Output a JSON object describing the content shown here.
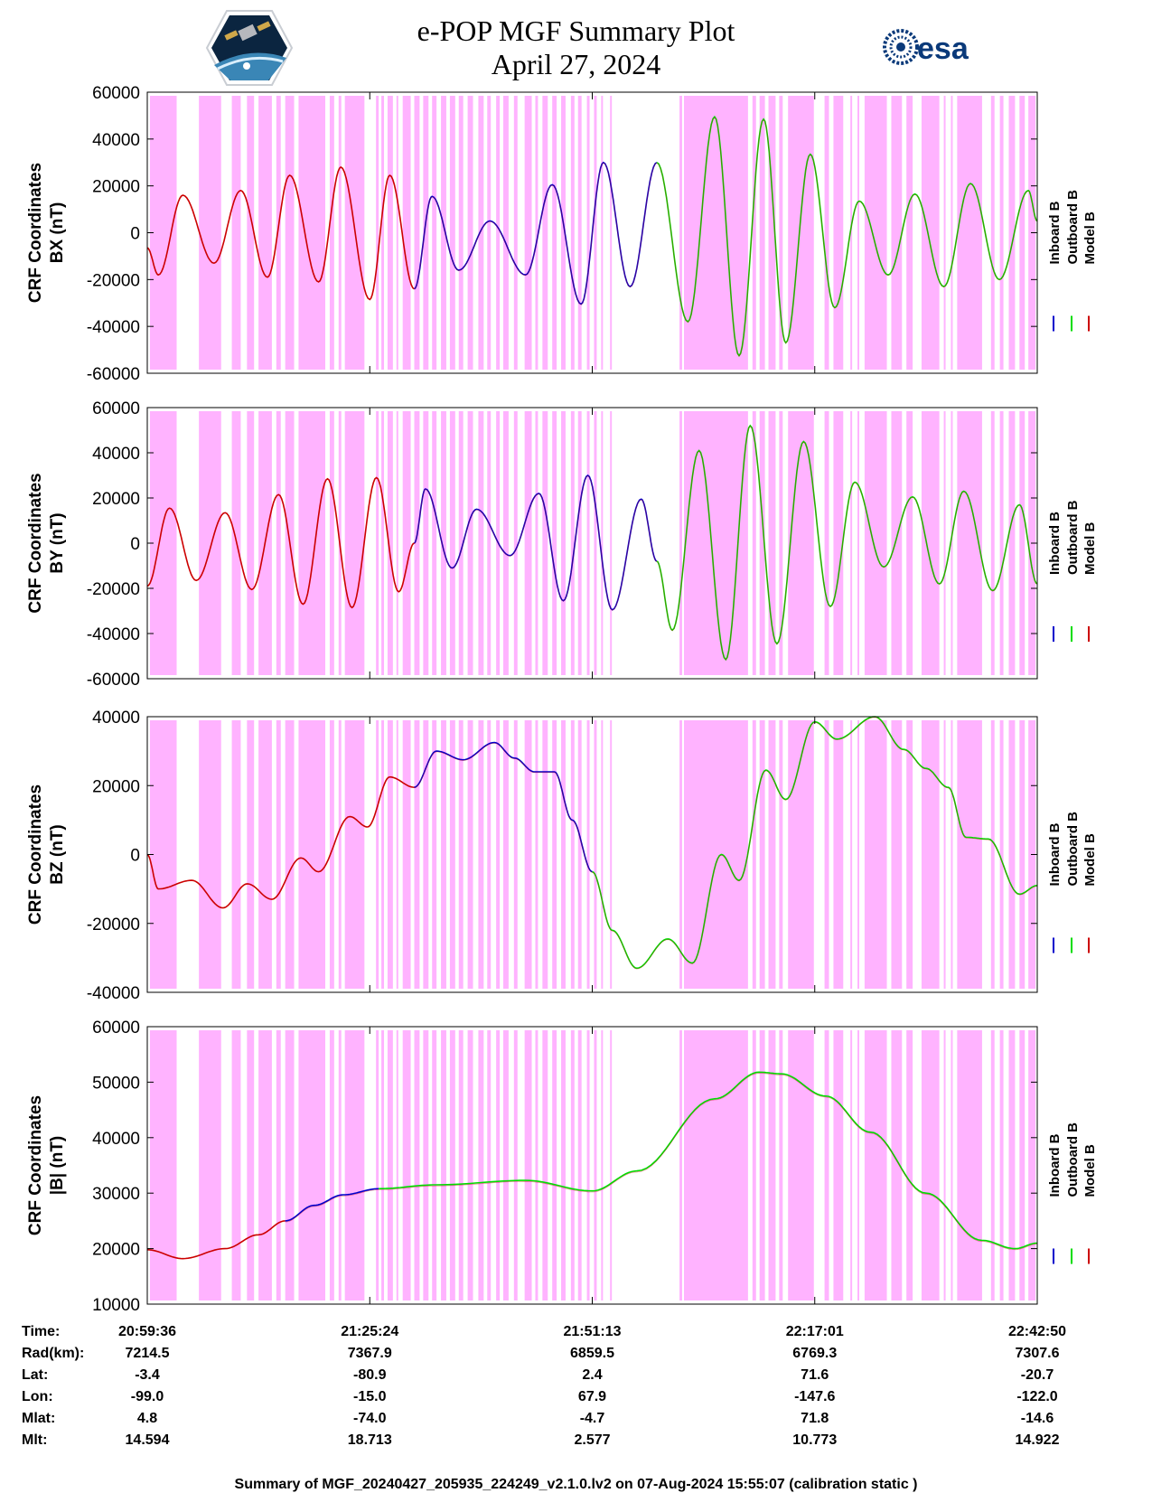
{
  "header": {
    "title_line1": "e-POP MGF Summary Plot",
    "title_line2": "April 27, 2024"
  },
  "logos": {
    "left": "cassiope-mission-logo",
    "right_text": "esa"
  },
  "colors": {
    "inboard": "#0000cc",
    "outboard": "#00dd00",
    "model": "#cc0000",
    "shade": "#ffb3ff"
  },
  "legend": {
    "inboard": "Inboard B",
    "outboard": "Outboard B",
    "model": "Model B"
  },
  "chart_data": [
    {
      "type": "line",
      "ylabel_line1": "CRF Coordinates",
      "ylabel_line2": "BX (nT)",
      "ylim": [
        -60000,
        60000
      ],
      "yticks": [
        60000,
        40000,
        20000,
        0,
        -20000,
        -40000,
        -60000
      ],
      "x": [
        0,
        1,
        2,
        3,
        4
      ],
      "series": [
        {
          "name": "Model B",
          "segment": "red",
          "extrema": [
            [
              0,
              -6500
            ],
            [
              0.05,
              -18000
            ],
            [
              0.16,
              16000
            ],
            [
              0.3,
              -13000
            ],
            [
              0.42,
              18000
            ],
            [
              0.54,
              -19000
            ],
            [
              0.64,
              24500
            ],
            [
              0.77,
              -21000
            ],
            [
              0.87,
              28000
            ],
            [
              1.0,
              -28500
            ],
            [
              1.09,
              24500
            ],
            [
              1.2,
              -24000
            ]
          ]
        },
        {
          "name": "Inboard B",
          "segment": "blue",
          "extrema": [
            [
              1.2,
              -24000
            ],
            [
              1.28,
              15500
            ],
            [
              1.4,
              -16000
            ],
            [
              1.54,
              5000
            ],
            [
              1.7,
              -18000
            ],
            [
              1.82,
              20500
            ],
            [
              1.95,
              -30500
            ],
            [
              2.05,
              30000
            ],
            [
              2.17,
              -23000
            ],
            [
              2.29,
              30000
            ]
          ]
        },
        {
          "name": "Outboard B",
          "segment": "green",
          "extrema": [
            [
              2.29,
              30000
            ],
            [
              2.43,
              -38000
            ],
            [
              2.55,
              49500
            ],
            [
              2.66,
              -52500
            ],
            [
              2.77,
              48500
            ],
            [
              2.87,
              -47000
            ],
            [
              2.98,
              33500
            ],
            [
              3.09,
              -32000
            ],
            [
              3.2,
              13500
            ],
            [
              3.33,
              -18000
            ],
            [
              3.45,
              16500
            ],
            [
              3.58,
              -23000
            ],
            [
              3.7,
              21000
            ],
            [
              3.83,
              -20000
            ],
            [
              3.96,
              18000
            ],
            [
              4.0,
              5000
            ]
          ]
        }
      ]
    },
    {
      "type": "line",
      "ylabel_line1": "CRF Coordinates",
      "ylabel_line2": "BY (nT)",
      "ylim": [
        -60000,
        60000
      ],
      "yticks": [
        60000,
        40000,
        20000,
        0,
        -20000,
        -40000,
        -60000
      ],
      "x": [
        0,
        1,
        2,
        3,
        4
      ],
      "series": [
        {
          "name": "Model B",
          "segment": "red",
          "extrema": [
            [
              0,
              -19000
            ],
            [
              0.1,
              15500
            ],
            [
              0.22,
              -16500
            ],
            [
              0.35,
              13500
            ],
            [
              0.47,
              -20500
            ],
            [
              0.59,
              21500
            ],
            [
              0.7,
              -27000
            ],
            [
              0.81,
              28500
            ],
            [
              0.92,
              -28500
            ],
            [
              1.03,
              29000
            ],
            [
              1.13,
              -21500
            ],
            [
              1.2,
              0
            ]
          ]
        },
        {
          "name": "Inboard B",
          "segment": "blue",
          "extrema": [
            [
              1.2,
              0
            ],
            [
              1.25,
              24000
            ],
            [
              1.37,
              -11000
            ],
            [
              1.48,
              15000
            ],
            [
              1.63,
              -5500
            ],
            [
              1.76,
              22000
            ],
            [
              1.87,
              -25500
            ],
            [
              1.98,
              30000
            ],
            [
              2.09,
              -29500
            ],
            [
              2.22,
              19500
            ],
            [
              2.29,
              -8000
            ]
          ]
        },
        {
          "name": "Outboard B",
          "segment": "green",
          "extrema": [
            [
              2.29,
              -8000
            ],
            [
              2.36,
              -38500
            ],
            [
              2.48,
              41000
            ],
            [
              2.6,
              -51500
            ],
            [
              2.71,
              52000
            ],
            [
              2.83,
              -44500
            ],
            [
              2.95,
              45000
            ],
            [
              3.07,
              -28000
            ],
            [
              3.18,
              27000
            ],
            [
              3.31,
              -10500
            ],
            [
              3.44,
              20500
            ],
            [
              3.56,
              -18000
            ],
            [
              3.67,
              23000
            ],
            [
              3.8,
              -21000
            ],
            [
              3.92,
              17000
            ],
            [
              4.0,
              -18000
            ]
          ]
        }
      ]
    },
    {
      "type": "line",
      "ylabel_line1": "CRF Coordinates",
      "ylabel_line2": "BZ (nT)",
      "ylim": [
        -40000,
        40000
      ],
      "yticks": [
        40000,
        20000,
        0,
        -20000,
        -40000
      ],
      "x": [
        0,
        1,
        2,
        3,
        4
      ],
      "series": [
        {
          "name": "Model B",
          "segment": "red",
          "extrema": [
            [
              0,
              0
            ],
            [
              0.05,
              -10000
            ],
            [
              0.2,
              -7500
            ],
            [
              0.34,
              -15500
            ],
            [
              0.45,
              -8500
            ],
            [
              0.56,
              -13000
            ],
            [
              0.69,
              -1000
            ],
            [
              0.77,
              -5000
            ],
            [
              0.91,
              11000
            ],
            [
              0.99,
              8000
            ],
            [
              1.09,
              22500
            ],
            [
              1.2,
              19500
            ]
          ]
        },
        {
          "name": "Inboard B",
          "segment": "blue",
          "extrema": [
            [
              1.2,
              19500
            ],
            [
              1.3,
              30000
            ],
            [
              1.42,
              27500
            ],
            [
              1.56,
              32500
            ],
            [
              1.65,
              28000
            ],
            [
              1.74,
              24000
            ],
            [
              1.83,
              24000
            ],
            [
              1.91,
              10000
            ],
            [
              2.0,
              -5000
            ]
          ]
        },
        {
          "name": "Outboard B",
          "segment": "green",
          "extrema": [
            [
              2.0,
              -5000
            ],
            [
              2.09,
              -22000
            ],
            [
              2.2,
              -33000
            ],
            [
              2.34,
              -24500
            ],
            [
              2.45,
              -31500
            ],
            [
              2.58,
              0
            ],
            [
              2.66,
              -7500
            ],
            [
              2.78,
              24500
            ],
            [
              2.87,
              16000
            ],
            [
              3.0,
              38500
            ],
            [
              3.1,
              33500
            ],
            [
              3.27,
              40000
            ],
            [
              3.4,
              30500
            ],
            [
              3.5,
              25000
            ],
            [
              3.6,
              19500
            ],
            [
              3.68,
              5000
            ],
            [
              3.78,
              4500
            ],
            [
              3.92,
              -11500
            ],
            [
              4.0,
              -9000
            ]
          ]
        }
      ]
    },
    {
      "type": "line",
      "ylabel_line1": "CRF Coordinates",
      "ylabel_line2": "|B| (nT)",
      "ylim": [
        10000,
        60000
      ],
      "yticks": [
        60000,
        50000,
        40000,
        30000,
        20000,
        10000
      ],
      "x": [
        0,
        1,
        2,
        3,
        4
      ],
      "series": [
        {
          "name": "Model B",
          "segment": "red",
          "extrema": [
            [
              0,
              19800
            ],
            [
              0.16,
              18200
            ],
            [
              0.35,
              20000
            ],
            [
              0.5,
              22500
            ],
            [
              0.62,
              25000
            ]
          ]
        },
        {
          "name": "Inboard B",
          "segment": "blue",
          "extrema": [
            [
              0.62,
              25000
            ],
            [
              0.75,
              27800
            ],
            [
              0.88,
              29700
            ],
            [
              1.04,
              30800
            ]
          ]
        },
        {
          "name": "Outboard B",
          "segment": "green",
          "extrema": [
            [
              1.04,
              30800
            ],
            [
              1.3,
              31500
            ],
            [
              1.7,
              32300
            ],
            [
              2.0,
              30400
            ],
            [
              2.2,
              34000
            ],
            [
              2.55,
              47000
            ],
            [
              2.75,
              51800
            ],
            [
              2.85,
              51500
            ],
            [
              3.05,
              47500
            ],
            [
              3.25,
              41000
            ],
            [
              3.5,
              30000
            ],
            [
              3.75,
              21500
            ],
            [
              3.9,
              20000
            ],
            [
              4.0,
              21000
            ]
          ]
        }
      ]
    }
  ],
  "shaded_intervals_fraction": [
    [
      0.003,
      0.033
    ],
    [
      0.058,
      0.083
    ],
    [
      0.095,
      0.105
    ],
    [
      0.112,
      0.12
    ],
    [
      0.125,
      0.14
    ],
    [
      0.145,
      0.15
    ],
    [
      0.155,
      0.165
    ],
    [
      0.17,
      0.2
    ],
    [
      0.205,
      0.21
    ],
    [
      0.215,
      0.218
    ],
    [
      0.222,
      0.244
    ],
    [
      0.257,
      0.26
    ],
    [
      0.263,
      0.266
    ],
    [
      0.27,
      0.276
    ],
    [
      0.28,
      0.282
    ],
    [
      0.287,
      0.296
    ],
    [
      0.3,
      0.306
    ],
    [
      0.31,
      0.316
    ],
    [
      0.32,
      0.325
    ],
    [
      0.33,
      0.336
    ],
    [
      0.34,
      0.346
    ],
    [
      0.35,
      0.355
    ],
    [
      0.36,
      0.366
    ],
    [
      0.372,
      0.378
    ],
    [
      0.382,
      0.386
    ],
    [
      0.392,
      0.396
    ],
    [
      0.4,
      0.406
    ],
    [
      0.412,
      0.416
    ],
    [
      0.424,
      0.432
    ],
    [
      0.436,
      0.439
    ],
    [
      0.444,
      0.45
    ],
    [
      0.455,
      0.46
    ],
    [
      0.465,
      0.47
    ],
    [
      0.476,
      0.48
    ],
    [
      0.484,
      0.488
    ],
    [
      0.494,
      0.497
    ],
    [
      0.502,
      0.505
    ],
    [
      0.51,
      0.512
    ],
    [
      0.52,
      0.522
    ],
    [
      0.598,
      0.601
    ],
    [
      0.603,
      0.675
    ],
    [
      0.68,
      0.684
    ],
    [
      0.688,
      0.694
    ],
    [
      0.698,
      0.706
    ],
    [
      0.71,
      0.714
    ],
    [
      0.72,
      0.749
    ],
    [
      0.761,
      0.766
    ],
    [
      0.771,
      0.782
    ],
    [
      0.79,
      0.792
    ],
    [
      0.798,
      0.8
    ],
    [
      0.806,
      0.831
    ],
    [
      0.836,
      0.848
    ],
    [
      0.853,
      0.86
    ],
    [
      0.87,
      0.89
    ],
    [
      0.895,
      0.897
    ],
    [
      0.903,
      0.905
    ],
    [
      0.91,
      0.938
    ],
    [
      0.948,
      0.952
    ],
    [
      0.958,
      0.962
    ],
    [
      0.968,
      0.975
    ],
    [
      0.98,
      0.986
    ],
    [
      0.99,
      0.998
    ]
  ],
  "time_axis": {
    "rows": [
      {
        "label": "Time:",
        "values": [
          "20:59:36",
          "21:25:24",
          "21:51:13",
          "22:17:01",
          "22:42:50"
        ]
      },
      {
        "label": "Rad(km):",
        "values": [
          "7214.5",
          "7367.9",
          "6859.5",
          "6769.3",
          "7307.6"
        ]
      },
      {
        "label": "Lat:",
        "values": [
          "-3.4",
          "-80.9",
          "2.4",
          "71.6",
          "-20.7"
        ]
      },
      {
        "label": "Lon:",
        "values": [
          "-99.0",
          "-15.0",
          "67.9",
          "-147.6",
          "-122.0"
        ]
      },
      {
        "label": "Mlat:",
        "values": [
          "4.8",
          "-74.0",
          "-4.7",
          "71.8",
          "-14.6"
        ]
      },
      {
        "label": "Mlt:",
        "values": [
          "14.594",
          "18.713",
          "2.577",
          "10.773",
          "14.922"
        ]
      }
    ]
  },
  "footer": "Summary of MGF_20240427_205935_224249_v2.1.0.lv2 on 07-Aug-2024 15:55:07 (calibration static )"
}
